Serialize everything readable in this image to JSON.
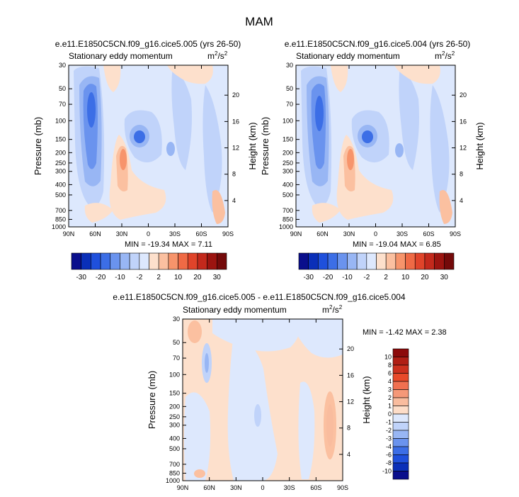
{
  "page_title": "MAM",
  "chart_data": [
    {
      "type": "contour",
      "id": "panel-a",
      "title": "e.e11.E1850C5CN.f09_g16.cice5.005 (yrs 26-50)",
      "subtitle_left": "Stationary eddy momentum",
      "units": "m2/s2",
      "units_base": "m",
      "units_sup": "2",
      "units_den": "/s",
      "units_den_sup": "2",
      "ylabel": "Pressure (mb)",
      "y2label": "Height (km)",
      "x_ticks": [
        "90N",
        "60N",
        "30N",
        "0",
        "30S",
        "60S",
        "90S"
      ],
      "y_ticks": [
        "30",
        "50",
        "70",
        "100",
        "150",
        "200",
        "250",
        "300",
        "400",
        "500",
        "700",
        "850",
        "1000"
      ],
      "y2_ticks": [
        "20",
        "16",
        "12",
        "8",
        "4"
      ],
      "min_label": "MIN =",
      "min": "-19.34",
      "max_label": "MAX =",
      "max": "7.11",
      "colorbar_labels": [
        "-30",
        "-20",
        "-10",
        "-2",
        "2",
        "10",
        "20",
        "30"
      ]
    },
    {
      "type": "contour",
      "id": "panel-b",
      "title": "e.e11.E1850C5CN.f09_g16.cice5.004 (yrs 26-50)",
      "subtitle_left": "Stationary eddy momentum",
      "units": "m2/s2",
      "units_base": "m",
      "units_sup": "2",
      "units_den": "/s",
      "units_den_sup": "2",
      "ylabel": "Pressure (mb)",
      "y2label": "Height (km)",
      "x_ticks": [
        "90N",
        "60N",
        "30N",
        "0",
        "30S",
        "60S",
        "90S"
      ],
      "y_ticks": [
        "30",
        "50",
        "70",
        "100",
        "150",
        "200",
        "250",
        "300",
        "400",
        "500",
        "700",
        "850",
        "1000"
      ],
      "y2_ticks": [
        "20",
        "16",
        "12",
        "8",
        "4"
      ],
      "min_label": "MIN =",
      "min": "-19.04",
      "max_label": "MAX =",
      "max": "6.85",
      "colorbar_labels": [
        "-30",
        "-20",
        "-10",
        "-2",
        "2",
        "10",
        "20",
        "30"
      ]
    },
    {
      "type": "contour",
      "id": "panel-diff",
      "title": "e.e11.E1850C5CN.f09_g16.cice5.005 - e.e11.E1850C5CN.f09_g16.cice5.004",
      "subtitle_left": "Stationary eddy momentum",
      "units": "m2/s2",
      "units_base": "m",
      "units_sup": "2",
      "units_den": "/s",
      "units_den_sup": "2",
      "ylabel": "Pressure (mb)",
      "y2label": "Height (km)",
      "x_ticks": [
        "90N",
        "60N",
        "30N",
        "0",
        "30S",
        "60S",
        "90S"
      ],
      "y_ticks": [
        "30",
        "50",
        "70",
        "100",
        "150",
        "200",
        "250",
        "300",
        "400",
        "500",
        "700",
        "850",
        "1000"
      ],
      "y2_ticks": [
        "20",
        "16",
        "12",
        "8",
        "4"
      ],
      "min_label": "MIN =",
      "min": "-1.42",
      "max_label": "MAX =",
      "max": "2.38",
      "colorbar_labels": [
        "10",
        "8",
        "6",
        "4",
        "3",
        "2",
        "1",
        "0",
        "-1",
        "-2",
        "-3",
        "-4",
        "-6",
        "-8",
        "-10"
      ]
    }
  ],
  "colors": {
    "cbar_main": [
      "#0a0f8c",
      "#0a2fb8",
      "#1f50dc",
      "#3c6ee6",
      "#6a93ee",
      "#98b6f4",
      "#c0d3fa",
      "#dde8fd",
      "#fde0cc",
      "#fbc0a0",
      "#f7946b",
      "#ef6a45",
      "#e0442a",
      "#c3291c",
      "#9c1410",
      "#740a0a"
    ],
    "cbar_diff": [
      "#8c0a0a",
      "#b01e14",
      "#cc301e",
      "#e84a2a",
      "#f07050",
      "#f59878",
      "#f9bc9e",
      "#fdddc8",
      "#dde8fd",
      "#c0d3fa",
      "#98b6f4",
      "#6a93ee",
      "#3c6ee6",
      "#1f50dc",
      "#0a2fb8",
      "#0a0f8c"
    ]
  }
}
